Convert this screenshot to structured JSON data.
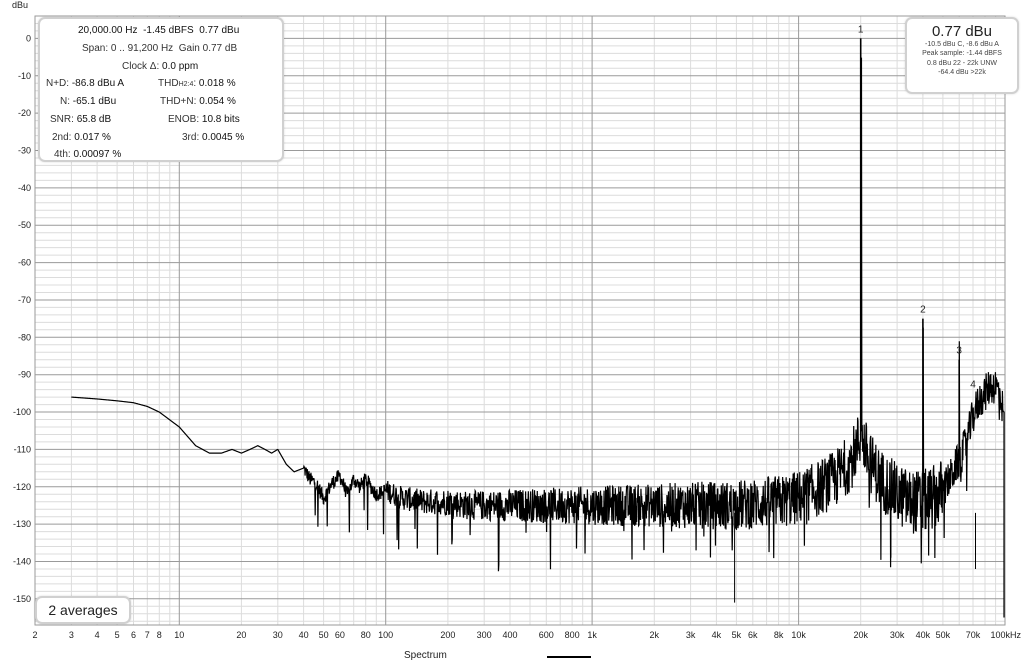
{
  "stats": {
    "freq": "20,000.00 Hz",
    "dbfs": "-1.45 dBFS",
    "dbu": "0.77 dBu",
    "span": "Span: 0 .. 91,200 Hz",
    "gain": "Gain 0.77 dB",
    "clock": "Clock Δ:",
    "clock_val": "0.0 ppm",
    "nd_k": "N+D:",
    "nd_v": "-86.8 dBu A",
    "thd_k": "THD",
    "thd_sub": "H2:4",
    "thd_colon": ":",
    "thd_v": "0.018 %",
    "n_k": "N:",
    "n_v": "-65.1 dBu",
    "thdn_k": "THD+N:",
    "thdn_v": "0.054 %",
    "snr_k": "SNR:",
    "snr_v": "65.8 dB",
    "enob_k": "ENOB:",
    "enob_v": "10.8 bits",
    "h2_k": "2nd:",
    "h2_v": "0.017 %",
    "h3_k": "3rd:",
    "h3_v": "0.0045 %",
    "h4_k": "4th:",
    "h4_v": "0.00097 %"
  },
  "level": {
    "big": "0.77 dBu",
    "l1": "-10.5 dBu C, -8.6 dBu A",
    "l2": "Peak sample: -1.44 dBFS",
    "l3": "0.8 dBu 22 - 22k UNW",
    "l4": "-64.4 dBu >22k"
  },
  "averages": "2 averages",
  "legend": "Spectrum",
  "colors": {
    "trace": "#000000",
    "grid_major": "#9a9a9a",
    "grid_minor": "#dcdcdc"
  },
  "chart_data": {
    "type": "line",
    "title": "",
    "xlabel": "",
    "ylabel": "dBu",
    "x_scale": "log",
    "xlim": [
      2,
      100000
    ],
    "ylim": [
      -160,
      10
    ],
    "grid": true,
    "legend_position": "bottom-center",
    "y_ticks": [
      0,
      -10,
      -20,
      -30,
      -40,
      -50,
      -60,
      -70,
      -80,
      -90,
      -100,
      -110,
      -120,
      -130,
      -140,
      -150
    ],
    "y_tick_labels": [
      "0",
      "-10",
      "-20",
      "-30",
      "-40",
      "-50",
      "-60",
      "-70",
      "-80",
      "-90",
      "-100",
      "-110",
      "-120",
      "-130",
      "-140",
      "-150"
    ],
    "x_ticks": [
      2,
      3,
      4,
      5,
      6,
      7,
      8,
      10,
      20,
      30,
      40,
      50,
      60,
      80,
      100,
      200,
      300,
      400,
      600,
      800,
      1000,
      2000,
      3000,
      4000,
      5000,
      6000,
      8000,
      10000,
      20000,
      30000,
      40000,
      50000,
      70000,
      100000
    ],
    "x_tick_labels": [
      "2",
      "3",
      "4",
      "5",
      "6",
      "7",
      "8",
      "10",
      "20",
      "30",
      "40",
      "50",
      "60",
      "80",
      "100",
      "200",
      "300",
      "400",
      "600",
      "800",
      "1k",
      "2k",
      "3k",
      "4k",
      "5k",
      "6k",
      "8k",
      "10k",
      "20k",
      "30k",
      "40k",
      "50k",
      "70k",
      "100kHz"
    ],
    "series": [
      {
        "x": [
          3,
          4,
          5,
          6,
          7,
          8,
          10,
          12,
          14,
          16,
          18,
          20,
          22,
          24,
          26,
          28,
          30,
          33,
          36,
          40,
          43,
          46,
          50,
          55,
          60,
          65,
          70,
          75,
          80,
          90,
          100,
          120,
          150,
          200,
          250,
          300,
          400,
          500,
          700,
          1000,
          1500,
          2000,
          3000,
          4000,
          4900,
          6000,
          8000,
          10000,
          12000,
          15000,
          18000,
          19500,
          20000,
          20500,
          22000,
          25000,
          30000,
          35000,
          39500,
          40000,
          40500,
          45000,
          50000,
          55000,
          59500,
          60000,
          60500,
          65000,
          70000,
          75000,
          80000,
          85000,
          90000,
          95000,
          98000,
          100000
        ],
        "y": [
          -96,
          -96.5,
          -97,
          -97.5,
          -98.5,
          -100,
          -104,
          -109,
          -111,
          -111,
          -110,
          -111,
          -110,
          -109,
          -110,
          -111,
          -110,
          -114,
          -116,
          -115,
          -118,
          -119,
          -123,
          -119,
          -117,
          -122,
          -118,
          -120,
          -118,
          -122,
          -121,
          -123,
          -124,
          -124,
          -125,
          -125,
          -125,
          -125,
          -125,
          -125,
          -125,
          -125,
          -125,
          -125,
          -125,
          -124.5,
          -124,
          -123,
          -121,
          -118,
          -113,
          -108,
          0,
          -108,
          -113,
          -118,
          -122,
          -124,
          -124,
          -75,
          -124,
          -123,
          -121,
          -117,
          -113,
          -86,
          -113,
          -108,
          -101,
          -97,
          -95,
          -93,
          -93,
          -95,
          -100,
          -155
        ]
      }
    ],
    "annotations": [
      {
        "x": 20000,
        "label": "1"
      },
      {
        "x": 40000,
        "label": "2"
      },
      {
        "x": 60000,
        "label": "3"
      },
      {
        "x": 80000,
        "label": "4"
      }
    ]
  }
}
